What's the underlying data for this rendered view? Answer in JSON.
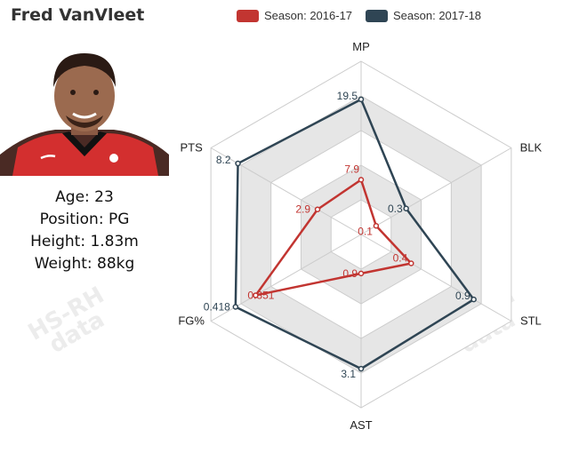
{
  "player": {
    "name": "Fred VanVleet",
    "age_line": "Age: 23",
    "position_line": "Position: PG",
    "height_line": "Height: 1.83m",
    "weight_line": "Weight: 88kg"
  },
  "watermark": {
    "line1": "HS-RH",
    "line2": "data"
  },
  "colors": {
    "season_2016": "#c23531",
    "season_2017": "#2f4554",
    "band": "#e6e6e6",
    "grid": "#cccccc"
  },
  "chart_data": {
    "type": "radar",
    "indicators": [
      "MP",
      "BLK",
      "STL",
      "AST",
      "FG%",
      "PTS"
    ],
    "legend_position": "top",
    "series": [
      {
        "name": "Season: 2016-17",
        "values": [
          7.9,
          0.1,
          0.4,
          0.9,
          0.351,
          2.9
        ],
        "labels": [
          "7.9",
          "0.1",
          "0.4",
          "0.9",
          "0.351",
          "2.9"
        ]
      },
      {
        "name": "Season: 2017-18",
        "values": [
          19.5,
          0.3,
          0.9,
          3.1,
          0.418,
          8.2
        ],
        "labels": [
          "19.5",
          "0.3",
          "0.9",
          "3.1",
          "0.418",
          "8.2"
        ]
      }
    ],
    "max": [
      25,
      1.0,
      1.2,
      4.0,
      0.5,
      10
    ]
  }
}
